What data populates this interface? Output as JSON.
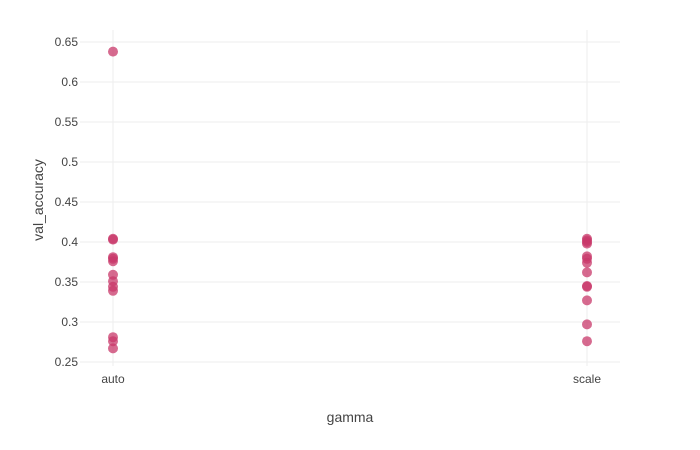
{
  "chart_data": {
    "type": "scatter",
    "title": "",
    "xlabel": "gamma",
    "ylabel": "val_accuracy",
    "categories": [
      "auto",
      "scale"
    ],
    "ylim": [
      0.245,
      0.665
    ],
    "yticks": [
      0.25,
      0.3,
      0.35,
      0.4,
      0.45,
      0.5,
      0.55,
      0.6,
      0.65
    ],
    "ytick_labels": [
      "0.25",
      "0.3",
      "0.35",
      "0.4",
      "0.45",
      "0.5",
      "0.55",
      "0.6",
      "0.65"
    ],
    "grid": true,
    "marker_color": "#c8386a",
    "marker_opacity": 0.75,
    "points": [
      {
        "x": "auto",
        "y": 0.638
      },
      {
        "x": "auto",
        "y": 0.404
      },
      {
        "x": "auto",
        "y": 0.403
      },
      {
        "x": "auto",
        "y": 0.381
      },
      {
        "x": "auto",
        "y": 0.379
      },
      {
        "x": "auto",
        "y": 0.376
      },
      {
        "x": "auto",
        "y": 0.359
      },
      {
        "x": "auto",
        "y": 0.351
      },
      {
        "x": "auto",
        "y": 0.344
      },
      {
        "x": "auto",
        "y": 0.339
      },
      {
        "x": "auto",
        "y": 0.281
      },
      {
        "x": "auto",
        "y": 0.276
      },
      {
        "x": "auto",
        "y": 0.267
      },
      {
        "x": "scale",
        "y": 0.404
      },
      {
        "x": "scale",
        "y": 0.402
      },
      {
        "x": "scale",
        "y": 0.4
      },
      {
        "x": "scale",
        "y": 0.398
      },
      {
        "x": "scale",
        "y": 0.382
      },
      {
        "x": "scale",
        "y": 0.379
      },
      {
        "x": "scale",
        "y": 0.374
      },
      {
        "x": "scale",
        "y": 0.362
      },
      {
        "x": "scale",
        "y": 0.345
      },
      {
        "x": "scale",
        "y": 0.344
      },
      {
        "x": "scale",
        "y": 0.327
      },
      {
        "x": "scale",
        "y": 0.297
      },
      {
        "x": "scale",
        "y": 0.276
      }
    ]
  }
}
